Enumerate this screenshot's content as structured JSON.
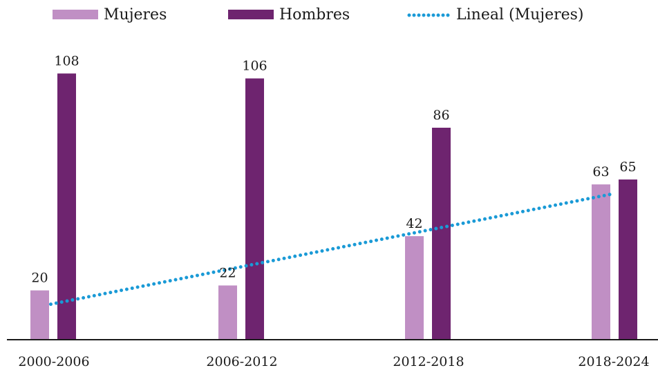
{
  "colors": {
    "mujeres": "#c08fc4",
    "hombres": "#6e246f",
    "trend": "#1a9ad6",
    "axis": "#1a1a1a"
  },
  "chart_data": {
    "type": "bar",
    "categories": [
      "2000-2006",
      "2006-2012",
      "2012-2018",
      "2018-2024"
    ],
    "series": [
      {
        "name": "Mujeres",
        "values": [
          20,
          22,
          42,
          63
        ]
      },
      {
        "name": "Hombres",
        "values": [
          108,
          106,
          86,
          65
        ]
      }
    ],
    "trendline": {
      "name": "Lineal (Mujeres)",
      "of_series": "Mujeres",
      "style": "dotted"
    },
    "ylim": [
      0,
      110
    ],
    "legend_position": "top",
    "grid": false
  }
}
